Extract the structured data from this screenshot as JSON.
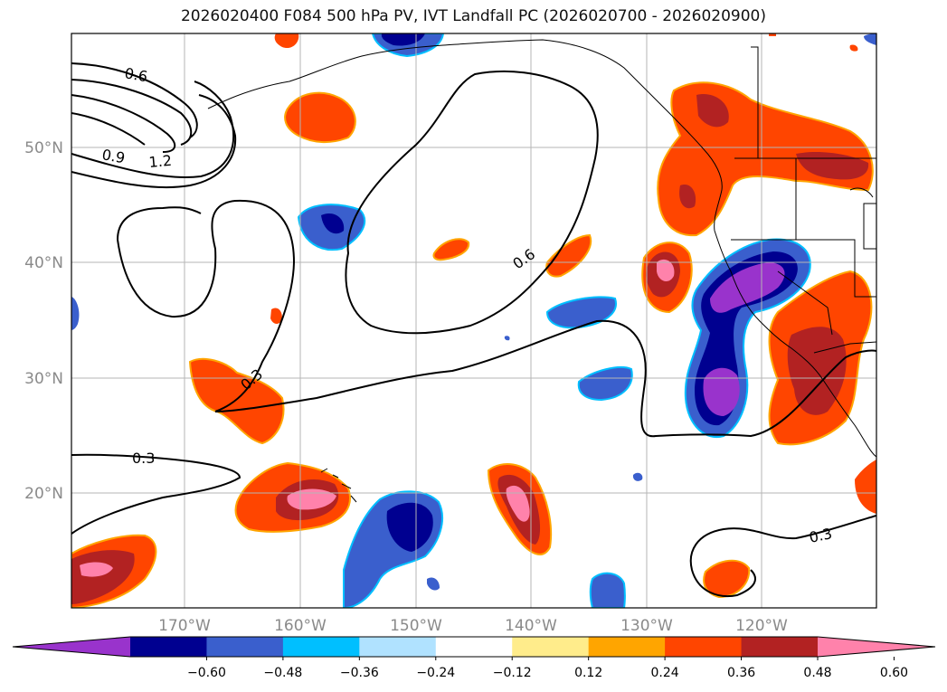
{
  "title": "2026020400 F084 500 hPa PV, IVT Landfall PC (2026020700 - 2026020900)",
  "lat_labels": [
    "50°N",
    "40°N",
    "30°N",
    "20°N"
  ],
  "lon_labels": [
    "170°W",
    "160°W",
    "150°W",
    "140°W",
    "130°W",
    "120°W"
  ],
  "contour_labels": [
    "0.6",
    "0.9",
    "1.2",
    "0.6",
    "0.3",
    "0.3",
    "0.3"
  ],
  "colorbar": {
    "ticks": [
      "−0.60",
      "−0.48",
      "−0.36",
      "−0.24",
      "−0.12",
      "0.12",
      "0.24",
      "0.36",
      "0.48",
      "0.60"
    ],
    "colors": [
      "#9933cc",
      "#000090",
      "#3a5fcd",
      "#00bfff",
      "#b0e2ff",
      "#ffffff",
      "#ffec8b",
      "#ffa500",
      "#ff4500",
      "#b22222",
      "#ff82ab"
    ]
  },
  "chart_data": {
    "type": "heatmap",
    "title": "2026020400 F084 500 hPa PV, IVT Landfall PC (2026020700 - 2026020900)",
    "x_ticks": [
      "170°W",
      "160°W",
      "150°W",
      "140°W",
      "130°W",
      "120°W"
    ],
    "y_ticks": [
      "50°N",
      "40°N",
      "30°N",
      "20°N"
    ],
    "color_levels": [
      -0.6,
      -0.48,
      -0.36,
      -0.24,
      -0.12,
      0.12,
      0.24,
      0.36,
      0.48,
      0.6
    ],
    "contour_levels": [
      0.3,
      0.6,
      0.9,
      1.2
    ]
  }
}
